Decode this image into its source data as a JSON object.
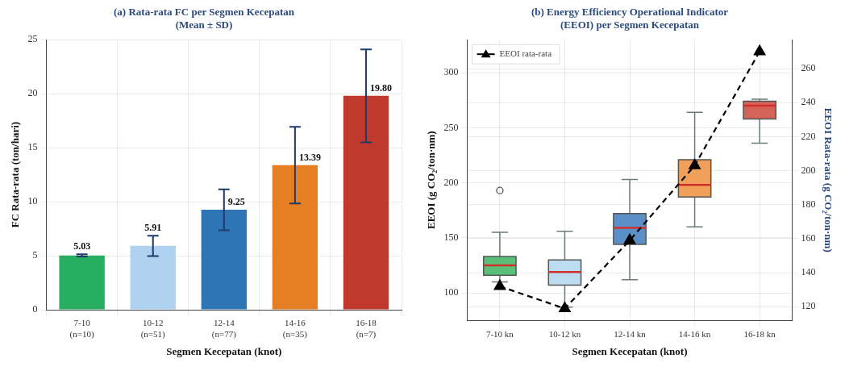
{
  "chart_data": [
    {
      "type": "bar",
      "title": "(a) Rata-rata FC per Segmen Kecepatan\n(Mean ± SD)",
      "xlabel": "Segmen Kecepatan (knot)",
      "ylabel": "FC Rata-rata (ton/hari)",
      "categories": [
        "7-10\n(n=10)",
        "10-12\n(n=51)",
        "12-14\n(n=77)",
        "14-16\n(n=35)",
        "16-18\n(n=7)"
      ],
      "values": [
        5.03,
        5.91,
        9.25,
        13.39,
        19.8
      ],
      "colors": [
        "#27ae60",
        "#aed2ef",
        "#2e75b6",
        "#e67e22",
        "#c0392b"
      ],
      "errors": [
        0.1,
        0.95,
        1.9,
        3.55,
        4.3
      ],
      "value_labels": [
        "5.03",
        "5.91",
        "9.25",
        "13.39",
        "19.80"
      ],
      "ylim": [
        0,
        25
      ],
      "yticks": [
        0,
        5,
        10,
        15,
        20,
        25
      ],
      "grid": true
    },
    {
      "type": "box",
      "title": "(b) Energy Efficiency Operational Indicator\n(EEOI) per Segmen Kecepatan",
      "xlabel": "Segmen Kecepatan (knot)",
      "ylabel": "EEOI (g CO₂/ton·nm)",
      "y2label": "EEOI Rata-rata (g CO₂/ton·nm)",
      "categories": [
        "7-10 kn",
        "10-12 kn",
        "12-14 kn",
        "14-16 kn",
        "16-18 kn"
      ],
      "colors": [
        "#5bbf7c",
        "#bcdcf2",
        "#5b8fc7",
        "#f0a05a",
        "#d4645a"
      ],
      "boxes": [
        {
          "low": 110,
          "q1": 116,
          "median": 125,
          "q3": 133,
          "high": 155,
          "outliers": [
            193
          ]
        },
        {
          "low": 87,
          "q1": 107,
          "median": 119,
          "q3": 130,
          "high": 156
        },
        {
          "low": 112,
          "q1": 144,
          "median": 159,
          "q3": 172,
          "high": 203
        },
        {
          "low": 160,
          "q1": 187,
          "median": 198,
          "q3": 221,
          "high": 264
        },
        {
          "low": 236,
          "q1": 258,
          "median": 270,
          "q3": 274,
          "high": 276
        }
      ],
      "series": [
        {
          "type": "line",
          "name": "EEOI rata-rata",
          "axis": "y2",
          "color": "#000000",
          "marker": "triangle",
          "line_style": "dashed",
          "values": [
            132,
            119,
            159,
            203,
            270
          ]
        }
      ],
      "ylim": [
        75,
        330
      ],
      "yticks": [
        100,
        150,
        200,
        250,
        300
      ],
      "y2lim": [
        112,
        277
      ],
      "y2ticks": [
        120,
        140,
        160,
        180,
        200,
        220,
        240,
        260
      ],
      "grid": true,
      "legend": "top left"
    }
  ]
}
